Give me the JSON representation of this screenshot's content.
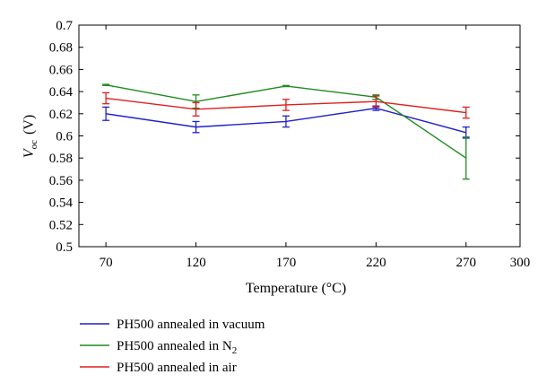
{
  "chart_data": {
    "type": "line",
    "xlabel": "Temperature (°C)",
    "ylabel_main": "V",
    "ylabel_sub": "oc",
    "ylabel_unit": "(V)",
    "xlim": [
      55,
      300
    ],
    "ylim": [
      0.5,
      0.7
    ],
    "x_ticks": [
      70,
      120,
      170,
      220,
      270,
      300
    ],
    "y_ticks": [
      0.5,
      0.52,
      0.54,
      0.56,
      0.58,
      0.6,
      0.62,
      0.64,
      0.66,
      0.68,
      0.7
    ],
    "grid": false,
    "legend_position": "bottom",
    "x": [
      70,
      120,
      170,
      220,
      270
    ],
    "series": [
      {
        "name_main": "PH500 annealed in vacuum",
        "name_sub": "",
        "color": "#1f1fcc",
        "values": [
          0.62,
          0.608,
          0.613,
          0.625,
          0.603
        ],
        "errors": [
          0.006,
          0.005,
          0.005,
          0.002,
          0.005
        ]
      },
      {
        "name_main": "PH500 annealed in N",
        "name_sub": "2",
        "color": "#1e8a1e",
        "values": [
          0.646,
          0.631,
          0.645,
          0.635,
          0.58
        ],
        "errors": [
          0.0005,
          0.006,
          0.0005,
          0.002,
          0.019
        ]
      },
      {
        "name_main": "PH500 annealed in air",
        "name_sub": "",
        "color": "#e01e1e",
        "values": [
          0.634,
          0.624,
          0.628,
          0.631,
          0.621
        ],
        "errors": [
          0.005,
          0.006,
          0.005,
          0.005,
          0.005
        ]
      }
    ]
  }
}
